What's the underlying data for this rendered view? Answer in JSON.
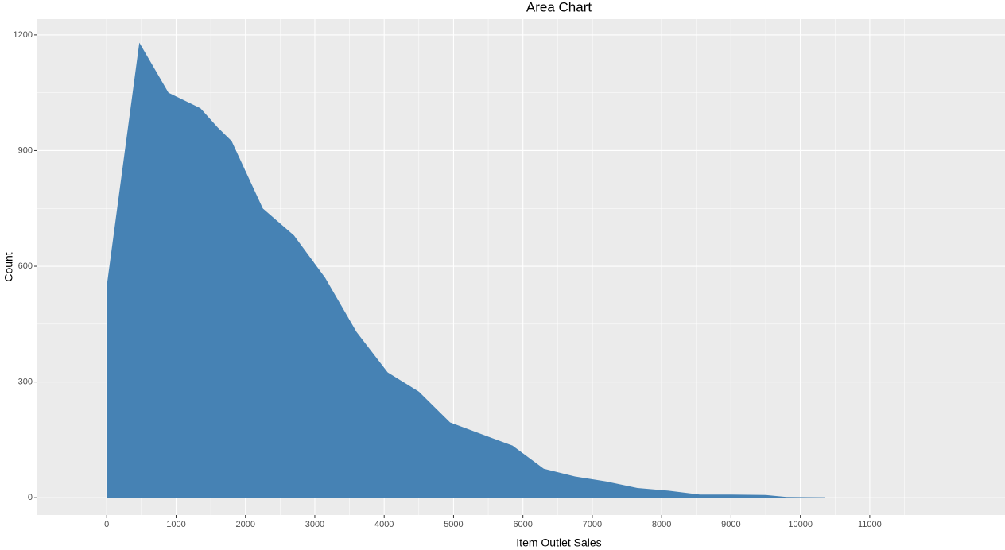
{
  "chart_data": {
    "type": "area",
    "title": "Area Chart",
    "x_label": "Item Outlet Sales",
    "y_label": "Count",
    "x": [
      0,
      470,
      890,
      1350,
      1600,
      1800,
      2250,
      2700,
      3150,
      3600,
      4050,
      4500,
      4950,
      5400,
      5850,
      6300,
      6750,
      7200,
      7650,
      8100,
      8550,
      9000,
      9500,
      9800,
      10350
    ],
    "values": [
      548,
      1180,
      1050,
      1010,
      960,
      925,
      750,
      680,
      570,
      430,
      325,
      275,
      195,
      165,
      135,
      75,
      55,
      42,
      25,
      18,
      8,
      8,
      7,
      2,
      1
    ],
    "color": "#4682b4",
    "xlim": [
      -1000,
      12950
    ],
    "ylim": [
      -45,
      1241
    ],
    "xticks": [
      0,
      1000,
      2000,
      3000,
      4000,
      5000,
      6000,
      7000,
      8000,
      9000,
      10000,
      11000
    ],
    "yticks": [
      0,
      300,
      600,
      900,
      1200
    ],
    "grid": true
  }
}
